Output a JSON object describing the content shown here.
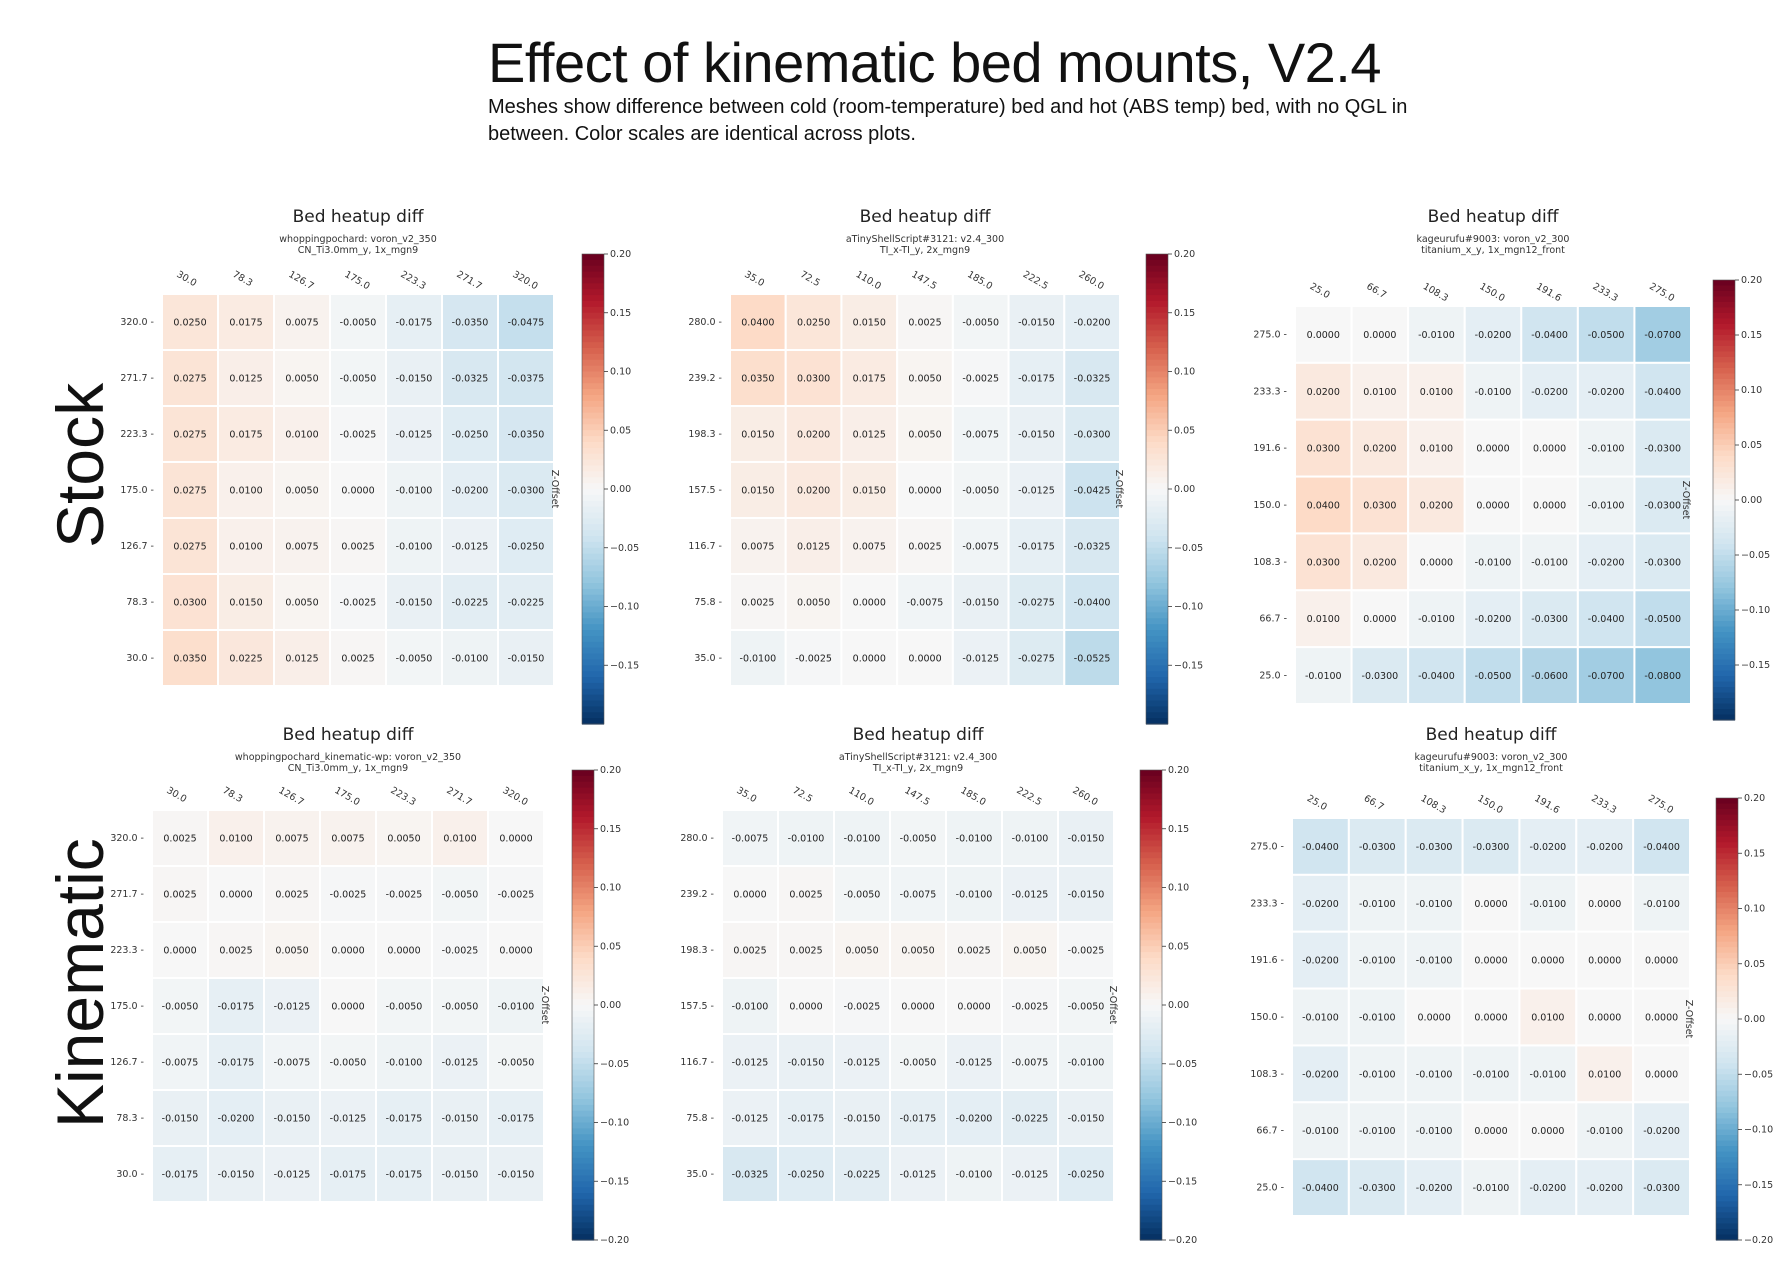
{
  "page": {
    "title": "Effect of kinematic bed mounts, V2.4",
    "subtitle": "Meshes show difference between cold (room-temperature) bed and hot (ABS temp) bed, with no QGL in between. Color scales are identical across plots.",
    "row_labels": [
      "Stock",
      "Kinematic"
    ]
  },
  "colorbar": {
    "label": "Z-Offset",
    "vmin": -0.2,
    "vmax": 0.2,
    "ticks": [
      "0.20",
      "0.15",
      "0.10",
      "0.05",
      "0.00",
      "−0.05",
      "−0.10",
      "−0.15",
      "−0.20"
    ],
    "colormap": "RdBu_r",
    "colors": {
      "neg_max": "#053061",
      "neutral": "#f7f7f7",
      "pos_max": "#67001f"
    }
  },
  "chart_data": [
    {
      "type": "heatmap",
      "title": "Bed heatup diff",
      "subtitle_lines": [
        "whoppingpochard: voron_v2_350",
        "CN_Ti3.0mm_y, 1x_mgn9"
      ],
      "x_ticks": [
        "30.0",
        "78.3",
        "126.7",
        "175.0",
        "223.3",
        "271.7",
        "320.0"
      ],
      "y_ticks": [
        "320.0",
        "271.7",
        "223.3",
        "175.0",
        "126.7",
        "78.3",
        "30.0"
      ],
      "values": [
        [
          0.025,
          0.0175,
          0.0075,
          -0.005,
          -0.0175,
          -0.035,
          -0.0475
        ],
        [
          0.0275,
          0.0125,
          0.005,
          -0.005,
          -0.015,
          -0.0325,
          -0.0375
        ],
        [
          0.0275,
          0.0175,
          0.01,
          -0.0025,
          -0.0125,
          -0.025,
          -0.035
        ],
        [
          0.0275,
          0.01,
          0.005,
          0.0,
          -0.01,
          -0.02,
          -0.03
        ],
        [
          0.0275,
          0.01,
          0.0075,
          0.0025,
          -0.01,
          -0.0125,
          -0.025
        ],
        [
          0.03,
          0.015,
          0.005,
          -0.0025,
          -0.015,
          -0.0225,
          -0.0225
        ],
        [
          0.035,
          0.0225,
          0.0125,
          0.0025,
          -0.005,
          -0.01,
          -0.015
        ]
      ],
      "colorbar_ticks": [
        "0.20",
        "0.15",
        "0.10",
        "0.05",
        "0.00",
        "−0.05",
        "−0.10",
        "−0.15"
      ]
    },
    {
      "type": "heatmap",
      "title": "Bed heatup diff",
      "subtitle_lines": [
        "aTinyShellScript#3121: v2.4_300",
        "TI_x-TI_y, 2x_mgn9"
      ],
      "x_ticks": [
        "35.0",
        "72.5",
        "110.0",
        "147.5",
        "185.0",
        "222.5",
        "260.0"
      ],
      "y_ticks": [
        "280.0",
        "239.2",
        "198.3",
        "157.5",
        "116.7",
        "75.8",
        "35.0"
      ],
      "values": [
        [
          0.04,
          0.025,
          0.015,
          0.0025,
          -0.005,
          -0.015,
          -0.02
        ],
        [
          0.035,
          0.03,
          0.0175,
          0.005,
          -0.0025,
          -0.0175,
          -0.0325
        ],
        [
          0.015,
          0.02,
          0.0125,
          0.005,
          -0.0075,
          -0.015,
          -0.03
        ],
        [
          0.015,
          0.02,
          0.015,
          0.0,
          -0.005,
          -0.0125,
          -0.0425
        ],
        [
          0.0075,
          0.0125,
          0.0075,
          0.0025,
          -0.0075,
          -0.0175,
          -0.0325
        ],
        [
          0.0025,
          0.005,
          0.0,
          -0.0075,
          -0.015,
          -0.0275,
          -0.04
        ],
        [
          -0.01,
          -0.0025,
          0.0,
          0.0,
          -0.0125,
          -0.0275,
          -0.0525
        ]
      ],
      "colorbar_ticks": [
        "0.20",
        "0.15",
        "0.10",
        "0.05",
        "0.00",
        "−0.05",
        "−0.10",
        "−0.15"
      ]
    },
    {
      "type": "heatmap",
      "title": "Bed heatup diff",
      "subtitle_lines": [
        "kageurufu#9003: voron_v2_300",
        "titanium_x_y, 1x_mgn12_front"
      ],
      "x_ticks": [
        "25.0",
        "66.7",
        "108.3",
        "150.0",
        "191.6",
        "233.3",
        "275.0"
      ],
      "y_ticks": [
        "275.0",
        "233.3",
        "191.6",
        "150.0",
        "108.3",
        "66.7",
        "25.0"
      ],
      "values": [
        [
          0.0,
          0.0,
          -0.01,
          -0.02,
          -0.04,
          -0.05,
          -0.07
        ],
        [
          0.02,
          0.01,
          0.01,
          -0.01,
          -0.02,
          -0.02,
          -0.04
        ],
        [
          0.03,
          0.02,
          0.01,
          0.0,
          0.0,
          -0.01,
          -0.03
        ],
        [
          0.04,
          0.03,
          0.02,
          0.0,
          0.0,
          -0.01,
          -0.03
        ],
        [
          0.03,
          0.02,
          0.0,
          -0.01,
          -0.01,
          -0.02,
          -0.03
        ],
        [
          0.01,
          0.0,
          -0.01,
          -0.02,
          -0.03,
          -0.04,
          -0.05
        ],
        [
          -0.01,
          -0.03,
          -0.04,
          -0.05,
          -0.06,
          -0.07,
          -0.08
        ]
      ],
      "colorbar_ticks": [
        "0.20",
        "0.15",
        "0.10",
        "0.05",
        "0.00",
        "−0.05",
        "−0.10",
        "−0.15"
      ]
    },
    {
      "type": "heatmap",
      "title": "Bed heatup diff",
      "subtitle_lines": [
        "whoppingpochard_kinematic-wp: voron_v2_350",
        "CN_Ti3.0mm_y, 1x_mgn9"
      ],
      "x_ticks": [
        "30.0",
        "78.3",
        "126.7",
        "175.0",
        "223.3",
        "271.7",
        "320.0"
      ],
      "y_ticks": [
        "320.0",
        "271.7",
        "223.3",
        "175.0",
        "126.7",
        "78.3",
        "30.0"
      ],
      "values": [
        [
          0.0025,
          0.01,
          0.0075,
          0.0075,
          0.005,
          0.01,
          0.0
        ],
        [
          0.0025,
          0.0,
          0.0025,
          -0.0025,
          -0.0025,
          -0.005,
          -0.0025
        ],
        [
          0.0,
          0.0025,
          0.005,
          0.0,
          0.0,
          -0.0025,
          0.0
        ],
        [
          -0.005,
          -0.0175,
          -0.0125,
          0.0,
          -0.005,
          -0.005,
          -0.01
        ],
        [
          -0.0075,
          -0.0175,
          -0.0075,
          -0.005,
          -0.01,
          -0.0125,
          -0.005
        ],
        [
          -0.015,
          -0.02,
          -0.015,
          -0.0125,
          -0.0175,
          -0.015,
          -0.0175
        ],
        [
          -0.0175,
          -0.015,
          -0.0125,
          -0.0175,
          -0.0175,
          -0.015,
          -0.015
        ]
      ],
      "colorbar_ticks": [
        "0.20",
        "0.15",
        "0.10",
        "0.05",
        "0.00",
        "−0.05",
        "−0.10",
        "−0.15",
        "−0.20"
      ]
    },
    {
      "type": "heatmap",
      "title": "Bed heatup diff",
      "subtitle_lines": [
        "aTinyShellScript#3121: v2.4_300",
        "TI_x-TI_y, 2x_mgn9"
      ],
      "x_ticks": [
        "35.0",
        "72.5",
        "110.0",
        "147.5",
        "185.0",
        "222.5",
        "260.0"
      ],
      "y_ticks": [
        "280.0",
        "239.2",
        "198.3",
        "157.5",
        "116.7",
        "75.8",
        "35.0"
      ],
      "values": [
        [
          -0.0075,
          -0.01,
          -0.01,
          -0.005,
          -0.01,
          -0.01,
          -0.015
        ],
        [
          0.0,
          0.0025,
          -0.005,
          -0.0075,
          -0.01,
          -0.0125,
          -0.015
        ],
        [
          0.0025,
          0.0025,
          0.005,
          0.005,
          0.0025,
          0.005,
          -0.0025
        ],
        [
          -0.01,
          0.0,
          -0.0025,
          0.0,
          0.0,
          -0.0025,
          -0.005
        ],
        [
          -0.0125,
          -0.015,
          -0.0125,
          -0.005,
          -0.0125,
          -0.0075,
          -0.01
        ],
        [
          -0.0125,
          -0.0175,
          -0.015,
          -0.0175,
          -0.02,
          -0.0225,
          -0.015
        ],
        [
          -0.0325,
          -0.025,
          -0.0225,
          -0.0125,
          -0.01,
          -0.0125,
          -0.025
        ]
      ],
      "colorbar_ticks": [
        "0.20",
        "0.15",
        "0.10",
        "0.05",
        "0.00",
        "−0.05",
        "−0.10",
        "−0.15",
        "−0.20"
      ]
    },
    {
      "type": "heatmap",
      "title": "Bed heatup diff",
      "subtitle_lines": [
        "kageurufu#9003: voron_v2_300",
        "titanium_x_y, 1x_mgn12_front"
      ],
      "x_ticks": [
        "25.0",
        "66.7",
        "108.3",
        "150.0",
        "191.6",
        "233.3",
        "275.0"
      ],
      "y_ticks": [
        "275.0",
        "233.3",
        "191.6",
        "150.0",
        "108.3",
        "66.7",
        "25.0"
      ],
      "values": [
        [
          -0.04,
          -0.03,
          -0.03,
          -0.03,
          -0.02,
          -0.02,
          -0.04
        ],
        [
          -0.02,
          -0.01,
          -0.01,
          0.0,
          -0.01,
          0.0,
          -0.01
        ],
        [
          -0.02,
          -0.01,
          -0.01,
          0.0,
          0.0,
          0.0,
          0.0
        ],
        [
          -0.01,
          -0.01,
          0.0,
          0.0,
          0.01,
          0.0,
          0.0
        ],
        [
          -0.02,
          -0.01,
          -0.01,
          -0.01,
          -0.01,
          0.01,
          0.0
        ],
        [
          -0.01,
          -0.01,
          -0.01,
          0.0,
          0.0,
          -0.01,
          -0.02
        ],
        [
          -0.04,
          -0.03,
          -0.02,
          -0.01,
          -0.02,
          -0.02,
          -0.03
        ]
      ],
      "colorbar_ticks": [
        "0.20",
        "0.15",
        "0.10",
        "0.05",
        "0.00",
        "−0.05",
        "−0.10",
        "−0.15",
        "−0.20"
      ]
    }
  ]
}
